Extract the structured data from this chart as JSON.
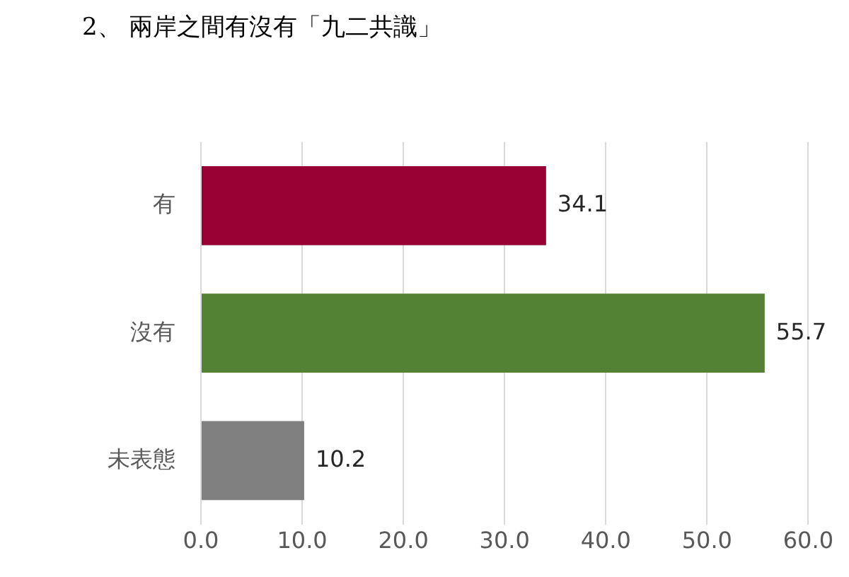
{
  "chart_data": {
    "type": "bar",
    "orientation": "horizontal",
    "title": "2、 兩岸之間有沒有「九二共識」",
    "categories": [
      "有",
      "沒有",
      "未表態"
    ],
    "values": [
      34.1,
      55.7,
      10.2
    ],
    "colors": [
      "#990033",
      "#548235",
      "#808080"
    ],
    "xlim": [
      0,
      60
    ],
    "xticks": [
      {
        "value": 0,
        "label": "0.0"
      },
      {
        "value": 10,
        "label": "10.0"
      },
      {
        "value": 20,
        "label": "20.0"
      },
      {
        "value": 30,
        "label": "30.0"
      },
      {
        "value": 40,
        "label": "40.0"
      },
      {
        "value": 50,
        "label": "50.0"
      },
      {
        "value": 60,
        "label": "60.0"
      }
    ],
    "grid": "x",
    "data_labels": true,
    "legend": false
  }
}
